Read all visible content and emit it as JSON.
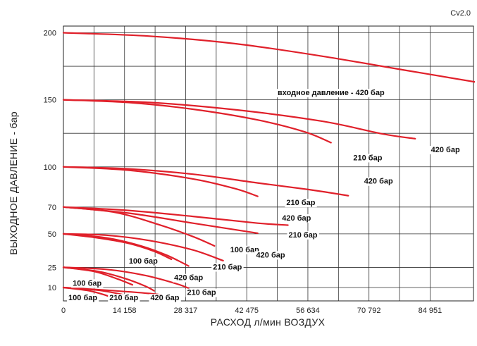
{
  "chart_data": {
    "type": "line",
    "corner_label": "Cv2.0",
    "xlabel": "РАСХОД л/мин ВОЗДУХ",
    "ylabel": "ВЫХОДНОЕ ДАВЛЕНИЕ - бар",
    "xlim": [
      0,
      95000
    ],
    "ylim": [
      0,
      205
    ],
    "x_ticks": [
      {
        "value": 0,
        "label": "0"
      },
      {
        "value": 14158,
        "label": "14 158"
      },
      {
        "value": 28317,
        "label": "28 317"
      },
      {
        "value": 42475,
        "label": "42 475"
      },
      {
        "value": 56634,
        "label": "56 634"
      },
      {
        "value": 70792,
        "label": "70 792"
      },
      {
        "value": 84951,
        "label": "84 951"
      }
    ],
    "y_ticks": [
      {
        "value": 10,
        "label": "10"
      },
      {
        "value": 25,
        "label": "25"
      },
      {
        "value": 50,
        "label": "50"
      },
      {
        "value": 70,
        "label": "70"
      },
      {
        "value": 100,
        "label": "100"
      },
      {
        "value": 150,
        "label": "150"
      },
      {
        "value": 200,
        "label": "200"
      }
    ],
    "x_grid": [
      0,
      7079,
      14158,
      21238,
      28317,
      35396,
      42475,
      49555,
      56634,
      63713,
      70792,
      77872,
      84951
    ],
    "y_grid": [
      10,
      25,
      50,
      70,
      100,
      125,
      150,
      175,
      200
    ],
    "grid": true,
    "line_color": "#e0202a",
    "series": [
      {
        "start": 200,
        "input_pressure": 420,
        "points": [
          [
            0,
            200
          ],
          [
            20000,
            197.5
          ],
          [
            40000,
            191.8
          ],
          [
            60000,
            182.5
          ],
          [
            80000,
            171.6
          ],
          [
            96000,
            163
          ]
        ],
        "label": "входное давление - 420 бар",
        "label_x": 62000,
        "label_y": 155.5
      },
      {
        "start": 150,
        "input_pressure": 420,
        "points": [
          [
            0,
            150
          ],
          [
            20000,
            148
          ],
          [
            40000,
            142.5
          ],
          [
            60000,
            134
          ],
          [
            74000,
            124.5
          ],
          [
            81500,
            121
          ]
        ],
        "label": "420 бар",
        "label_x": 88500,
        "label_y": 113
      },
      {
        "start": 150,
        "input_pressure": 210,
        "points": [
          [
            0,
            150
          ],
          [
            15000,
            148
          ],
          [
            30000,
            143
          ],
          [
            45000,
            135
          ],
          [
            56000,
            126
          ],
          [
            62000,
            118
          ]
        ],
        "label": "210 бар",
        "label_x": 70500,
        "label_y": 107
      },
      {
        "start": 100,
        "input_pressure": 420,
        "points": [
          [
            0,
            100
          ],
          [
            15000,
            98.5
          ],
          [
            30000,
            94.5
          ],
          [
            45000,
            88
          ],
          [
            57000,
            83
          ],
          [
            66000,
            78.5
          ]
        ],
        "label": "420 бар",
        "label_x": 73000,
        "label_y": 89.5
      },
      {
        "start": 100,
        "input_pressure": 210,
        "points": [
          [
            0,
            100
          ],
          [
            15000,
            97.5
          ],
          [
            30000,
            91
          ],
          [
            40000,
            83.5
          ],
          [
            45000,
            78
          ]
        ],
        "label": "210 бар",
        "label_x": 55000,
        "label_y": 73.5
      },
      {
        "start": 70,
        "input_pressure": 420,
        "points": [
          [
            0,
            70
          ],
          [
            15000,
            67.5
          ],
          [
            30000,
            63
          ],
          [
            45000,
            58
          ],
          [
            52000,
            56.5
          ]
        ],
        "label": "420 бар",
        "label_x": 54000,
        "label_y": 62
      },
      {
        "start": 70,
        "input_pressure": 210,
        "points": [
          [
            0,
            70
          ],
          [
            15000,
            65.5
          ],
          [
            30000,
            58
          ],
          [
            40000,
            53
          ],
          [
            45000,
            50.5
          ]
        ],
        "label": "210 бар",
        "label_x": 55500,
        "label_y": 49.5
      },
      {
        "start": 70,
        "input_pressure": 100,
        "points": [
          [
            0,
            70
          ],
          [
            12000,
            66
          ],
          [
            22000,
            57
          ],
          [
            30000,
            48
          ],
          [
            35000,
            41
          ]
        ],
        "label": "100 бар",
        "label_x": 42000,
        "label_y": 38.5
      },
      {
        "start": 50,
        "input_pressure": 420,
        "points": [
          [
            0,
            50
          ],
          [
            10000,
            49
          ],
          [
            20000,
            45
          ],
          [
            30000,
            38
          ],
          [
            37000,
            30
          ]
        ],
        "label": "420 бар",
        "label_x": 48000,
        "label_y": 34.5
      },
      {
        "start": 50,
        "input_pressure": 210,
        "points": [
          [
            0,
            50
          ],
          [
            10000,
            47
          ],
          [
            18000,
            41
          ],
          [
            24000,
            34
          ],
          [
            29000,
            26
          ]
        ],
        "label": "210 бар",
        "label_x": 38000,
        "label_y": 25.5
      },
      {
        "start": 50,
        "input_pressure": 100,
        "points": [
          [
            0,
            50
          ],
          [
            8000,
            47
          ],
          [
            15000,
            43
          ],
          [
            21000,
            37
          ],
          [
            25000,
            31
          ]
        ],
        "label": "100 бар",
        "label_x": 18500,
        "label_y": 30
      },
      {
        "start": 25,
        "input_pressure": 420,
        "points": [
          [
            0,
            25
          ],
          [
            10000,
            23.5
          ],
          [
            19000,
            19
          ],
          [
            26000,
            13
          ],
          [
            29000,
            9.5
          ]
        ],
        "label": "420 бар",
        "label_x": 29000,
        "label_y": 17.5
      },
      {
        "start": 25,
        "input_pressure": 210,
        "points": [
          [
            0,
            25
          ],
          [
            8000,
            22
          ],
          [
            14000,
            17
          ],
          [
            19000,
            11
          ],
          [
            21000,
            7.5
          ]
        ],
        "label": "210 бар",
        "label_x": 32000,
        "label_y": 6.5
      },
      {
        "start": 25,
        "input_pressure": 100,
        "points": [
          [
            0,
            25
          ],
          [
            7000,
            22
          ],
          [
            12000,
            17
          ],
          [
            16000,
            12
          ]
        ],
        "label": "100 бар",
        "label_x": 5500,
        "label_y": 13.5
      },
      {
        "start": 10,
        "input_pressure": 420,
        "points": [
          [
            0,
            10
          ],
          [
            10000,
            8
          ],
          [
            20000,
            5.5
          ],
          [
            26000,
            3
          ]
        ],
        "label": "420 бар",
        "label_x": 23500,
        "label_y": 2.5
      },
      {
        "start": 10,
        "input_pressure": 210,
        "points": [
          [
            0,
            10
          ],
          [
            8000,
            8
          ],
          [
            14000,
            4.5
          ],
          [
            17000,
            2
          ]
        ],
        "label": "210 бар",
        "label_x": 14000,
        "label_y": 2.5
      },
      {
        "start": 10,
        "input_pressure": 100,
        "points": [
          [
            0,
            10
          ],
          [
            6000,
            7.5
          ],
          [
            10000,
            4
          ],
          [
            12500,
            1
          ]
        ],
        "label": "100 бар",
        "label_x": 4500,
        "label_y": 2.5
      }
    ]
  }
}
